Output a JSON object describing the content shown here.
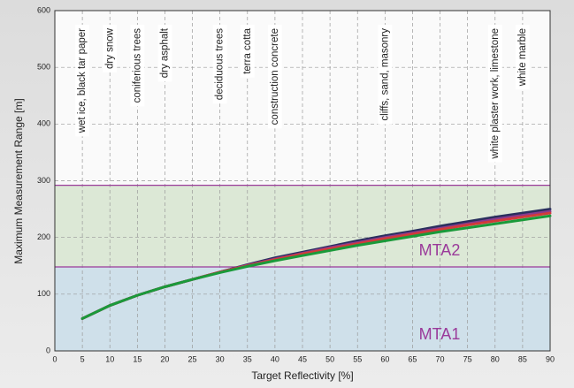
{
  "chart_data": {
    "type": "line",
    "x_label": "Target Reflectivity [%]",
    "y_label": "Maximum Measurement Range [m]",
    "x": [
      5,
      10,
      15,
      20,
      25,
      30,
      35,
      40,
      45,
      50,
      55,
      60,
      65,
      70,
      75,
      80,
      85,
      90
    ],
    "series": [
      {
        "color": "#2a2f5e",
        "values": [
          57,
          80,
          98,
          113,
          126,
          139,
          152,
          164,
          174,
          184,
          194,
          203,
          211,
          220,
          228,
          236,
          243,
          250
        ]
      },
      {
        "color": "#8a3a8e",
        "values": [
          57,
          80,
          98,
          113,
          126,
          139,
          151,
          162,
          172,
          182,
          191,
          200,
          208,
          216,
          224,
          232,
          239,
          246
        ]
      },
      {
        "color": "#d23a3a",
        "values": [
          57,
          80,
          98,
          113,
          126,
          139,
          150,
          161,
          171,
          180,
          189,
          198,
          206,
          214,
          222,
          229,
          236,
          243
        ]
      },
      {
        "color": "#1a9a3a",
        "values": [
          57,
          80,
          98,
          113,
          126,
          138,
          149,
          159,
          168,
          177,
          186,
          194,
          202,
          210,
          217,
          224,
          231,
          238
        ]
      }
    ],
    "zones": [
      {
        "label": "MTA1",
        "range": [
          0,
          148
        ],
        "color": "#cfe0ea"
      },
      {
        "label": "MTA2",
        "range": [
          148,
          292
        ],
        "color": "#dce8d6"
      }
    ],
    "zone_line_color": "#9a3a9a",
    "annotations": [
      {
        "text": "wet ice, black tar paper",
        "x": 5
      },
      {
        "text": "dry snow",
        "x": 10
      },
      {
        "text": "coniferious trees",
        "x": 15
      },
      {
        "text": "dry asphalt",
        "x": 20
      },
      {
        "text": "deciduous trees",
        "x": 30
      },
      {
        "text": "terra cotta",
        "x": 35
      },
      {
        "text": "construction concrete",
        "x": 40
      },
      {
        "text": "cliffs, sand, masonry",
        "x": 60
      },
      {
        "text": "white plaster work, limestone",
        "x": 80
      },
      {
        "text": "white marble",
        "x": 85
      }
    ],
    "xlim": [
      0,
      90
    ],
    "xticks": [
      0,
      5,
      10,
      15,
      20,
      25,
      30,
      35,
      40,
      45,
      50,
      55,
      60,
      65,
      70,
      75,
      80,
      85,
      90
    ],
    "ylim": [
      0,
      600
    ],
    "yticks": [
      0,
      100,
      200,
      300,
      400,
      500,
      600
    ],
    "grid": true
  }
}
